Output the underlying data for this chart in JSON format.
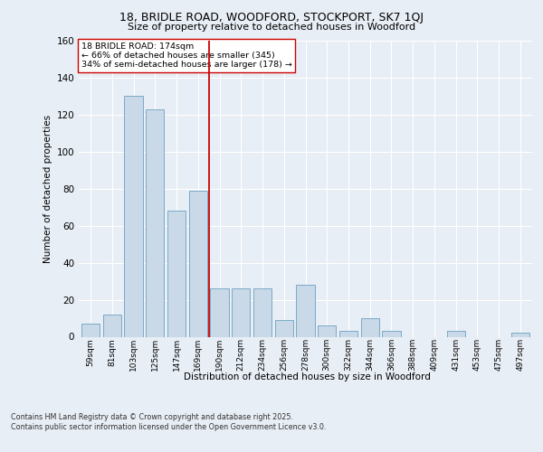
{
  "title_line1": "18, BRIDLE ROAD, WOODFORD, STOCKPORT, SK7 1QJ",
  "title_line2": "Size of property relative to detached houses in Woodford",
  "xlabel": "Distribution of detached houses by size in Woodford",
  "ylabel": "Number of detached properties",
  "categories": [
    "59sqm",
    "81sqm",
    "103sqm",
    "125sqm",
    "147sqm",
    "169sqm",
    "190sqm",
    "212sqm",
    "234sqm",
    "256sqm",
    "278sqm",
    "300sqm",
    "322sqm",
    "344sqm",
    "366sqm",
    "388sqm",
    "409sqm",
    "431sqm",
    "453sqm",
    "475sqm",
    "497sqm"
  ],
  "values": [
    7,
    12,
    130,
    123,
    68,
    79,
    26,
    26,
    26,
    9,
    28,
    6,
    3,
    10,
    3,
    0,
    0,
    3,
    0,
    0,
    2
  ],
  "bar_color": "#c9d9e8",
  "bar_edge_color": "#7aaac8",
  "vline_x": 5.5,
  "vline_color": "#cc0000",
  "annotation_text": "18 BRIDLE ROAD: 174sqm\n← 66% of detached houses are smaller (345)\n34% of semi-detached houses are larger (178) →",
  "annotation_box_color": "#ffffff",
  "annotation_box_edge_color": "#cc0000",
  "bg_color": "#e8eef5",
  "plot_bg_color": "#e8eef5",
  "grid_color": "#ffffff",
  "footer_text": "Contains HM Land Registry data © Crown copyright and database right 2025.\nContains public sector information licensed under the Open Government Licence v3.0.",
  "ylim": [
    0,
    160
  ],
  "yticks": [
    0,
    20,
    40,
    60,
    80,
    100,
    120,
    140,
    160
  ]
}
